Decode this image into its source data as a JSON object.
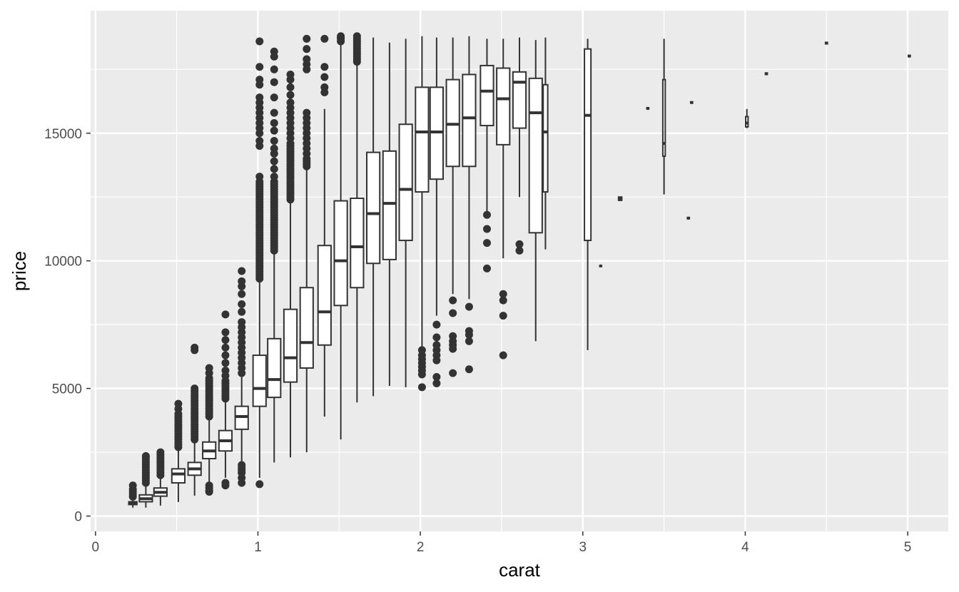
{
  "chart_data": {
    "type": "boxplot",
    "title": "",
    "xlabel": "carat",
    "ylabel": "price",
    "xlim": [
      -0.03,
      5.25
    ],
    "ylim": [
      -600,
      19800
    ],
    "x_ticks": [
      0,
      1,
      2,
      3,
      4,
      5
    ],
    "x_tick_labels": [
      "0",
      "1",
      "2",
      "3",
      "4",
      "5"
    ],
    "y_ticks": [
      0,
      5000,
      10000,
      15000
    ],
    "y_tick_labels": [
      "0",
      "5000",
      "10000",
      "15000"
    ],
    "grid": true,
    "colors": {
      "panel": "#ebebeb",
      "grid": "#ffffff",
      "box_fill": "#ffffff",
      "box_stroke": "#333333",
      "outlier": "#333333",
      "tick_text": "#4d4d4d",
      "title_text": "#000000"
    },
    "boxes": [
      {
        "x": 0.23,
        "w": 0.05,
        "q1": 450,
        "median": 500,
        "q3": 560,
        "lower": 330,
        "upper": 720,
        "outliers": [
          760,
          850,
          950,
          1050,
          1200
        ]
      },
      {
        "x": 0.31,
        "w": 0.08,
        "q1": 560,
        "median": 680,
        "q3": 830,
        "lower": 330,
        "upper": 1200,
        "outliers": [
          1300,
          1400,
          1500,
          1600,
          1700,
          1800,
          1900,
          2000,
          2100,
          2200,
          2300,
          2350
        ]
      },
      {
        "x": 0.4,
        "w": 0.08,
        "q1": 780,
        "median": 930,
        "q3": 1100,
        "lower": 410,
        "upper": 1500,
        "outliers": [
          1600,
          1700,
          1800,
          1900,
          2000,
          2100,
          2200,
          2300,
          2400,
          2500
        ]
      },
      {
        "x": 0.51,
        "w": 0.08,
        "q1": 1300,
        "median": 1650,
        "q3": 1850,
        "lower": 550,
        "upper": 2600,
        "outliers": [
          2700,
          2800,
          2900,
          3000,
          3100,
          3200,
          3300,
          3400,
          3500,
          3600,
          3700,
          3800,
          3900,
          4000,
          4200,
          4400
        ]
      },
      {
        "x": 0.61,
        "w": 0.08,
        "q1": 1600,
        "median": 1850,
        "q3": 2100,
        "lower": 800,
        "upper": 2900,
        "outliers": [
          3000,
          3100,
          3200,
          3300,
          3400,
          3500,
          3600,
          3700,
          3800,
          3900,
          4000,
          4100,
          4200,
          4300,
          4400,
          4500,
          4600,
          4700,
          4800,
          4900,
          5000,
          6500,
          6600
        ]
      },
      {
        "x": 0.7,
        "w": 0.08,
        "q1": 2250,
        "median": 2550,
        "q3": 2900,
        "lower": 1300,
        "upper": 3800,
        "outliers": [
          950,
          1000,
          1100,
          1200,
          3900,
          4000,
          4100,
          4200,
          4300,
          4400,
          4500,
          4600,
          4700,
          4800,
          4900,
          5000,
          5100,
          5200,
          5300,
          5400,
          5600,
          5800
        ]
      },
      {
        "x": 0.8,
        "w": 0.08,
        "q1": 2550,
        "median": 2950,
        "q3": 3350,
        "lower": 1500,
        "upper": 4500,
        "outliers": [
          1200,
          1300,
          4600,
          4700,
          4800,
          4900,
          5000,
          5100,
          5200,
          5300,
          5500,
          5700,
          6000,
          6300,
          6600,
          6900,
          7200,
          7900
        ]
      },
      {
        "x": 0.9,
        "w": 0.08,
        "q1": 3400,
        "median": 3900,
        "q3": 4300,
        "lower": 2100,
        "upper": 5500,
        "outliers": [
          1300,
          1500,
          1700,
          1800,
          1900,
          2000,
          5600,
          5800,
          6000,
          6200,
          6400,
          6600,
          6800,
          7000,
          7200,
          7400,
          7600,
          8000,
          8300,
          8700,
          9000,
          9200,
          9600
        ]
      },
      {
        "x": 1.01,
        "w": 0.08,
        "q1": 4300,
        "median": 5000,
        "q3": 6300,
        "lower": 1500,
        "upper": 9200,
        "outliers": [
          1250,
          9300,
          9400,
          9500,
          9600,
          9700,
          9800,
          9900,
          10000,
          10100,
          10200,
          10300,
          10400,
          10500,
          10600,
          10700,
          10800,
          10900,
          11000,
          11100,
          11200,
          11300,
          11400,
          11500,
          11600,
          11700,
          11800,
          11900,
          12000,
          12100,
          12200,
          12300,
          12400,
          12500,
          12600,
          12700,
          12800,
          12900,
          13000,
          13100,
          13300,
          14500,
          14700,
          15000,
          15200,
          15400,
          15600,
          15800,
          16000,
          16200,
          16400,
          16900,
          17100,
          17600,
          18600
        ]
      },
      {
        "x": 1.1,
        "w": 0.08,
        "q1": 4650,
        "median": 5350,
        "q3": 6950,
        "lower": 2100,
        "upper": 10300,
        "outliers": [
          10400,
          10500,
          10600,
          10700,
          10800,
          10900,
          11000,
          11100,
          11200,
          11300,
          11400,
          11500,
          11600,
          11700,
          11800,
          11900,
          12000,
          12100,
          12200,
          12300,
          12400,
          12500,
          12600,
          12700,
          12800,
          12900,
          13000,
          13100,
          13300,
          13600,
          13900,
          14200,
          14400,
          14700,
          15100,
          15400,
          15800,
          16400,
          17000,
          17500,
          18000,
          18200
        ]
      },
      {
        "x": 1.2,
        "w": 0.08,
        "q1": 5250,
        "median": 6200,
        "q3": 8100,
        "lower": 2300,
        "upper": 12300,
        "outliers": [
          12400,
          12500,
          12600,
          12700,
          12800,
          12900,
          13000,
          13100,
          13200,
          13300,
          13400,
          13500,
          13600,
          13700,
          13800,
          13900,
          14000,
          14100,
          14200,
          14300,
          14400,
          14500,
          14600,
          14800,
          15000,
          15200,
          15400,
          15600,
          15800,
          16000,
          16200,
          16500,
          16800,
          17100,
          17300
        ]
      },
      {
        "x": 1.3,
        "w": 0.08,
        "q1": 5800,
        "median": 6800,
        "q3": 8950,
        "lower": 2500,
        "upper": 13600,
        "outliers": [
          13700,
          13800,
          13900,
          14000,
          14200,
          14400,
          14600,
          14800,
          15000,
          15200,
          15400,
          15600,
          15800,
          17500,
          17700,
          17900,
          18300,
          18700
        ]
      },
      {
        "x": 1.41,
        "w": 0.08,
        "q1": 6700,
        "median": 8000,
        "q3": 10600,
        "lower": 3900,
        "upper": 15950,
        "outliers": [
          16600,
          16800,
          17200,
          17600,
          18700
        ]
      },
      {
        "x": 1.51,
        "w": 0.08,
        "q1": 8250,
        "median": 10000,
        "q3": 12350,
        "lower": 3000,
        "upper": 18550,
        "outliers": [
          18600,
          18700,
          18750,
          18800
        ]
      },
      {
        "x": 1.61,
        "w": 0.08,
        "q1": 8950,
        "median": 10550,
        "q3": 12450,
        "lower": 4450,
        "upper": 17700,
        "outliers": [
          17800,
          17900,
          18000,
          18100,
          18200,
          18300,
          18400,
          18500,
          18600,
          18700,
          18800
        ]
      },
      {
        "x": 1.71,
        "w": 0.08,
        "q1": 9900,
        "median": 11850,
        "q3": 14250,
        "lower": 4700,
        "upper": 18750,
        "outliers": []
      },
      {
        "x": 1.81,
        "w": 0.08,
        "q1": 10050,
        "median": 12250,
        "q3": 14300,
        "lower": 5100,
        "upper": 18550,
        "outliers": []
      },
      {
        "x": 1.91,
        "w": 0.08,
        "q1": 10800,
        "median": 12800,
        "q3": 15350,
        "lower": 5050,
        "upper": 18700,
        "outliers": []
      },
      {
        "x": 2.01,
        "w": 0.08,
        "q1": 12700,
        "median": 15050,
        "q3": 16800,
        "lower": 6650,
        "upper": 18800,
        "outliers": [
          5050,
          5550,
          5700,
          5850,
          6000,
          6150,
          6300,
          6500
        ]
      },
      {
        "x": 2.1,
        "w": 0.08,
        "q1": 13200,
        "median": 15050,
        "q3": 16800,
        "lower": 7850,
        "upper": 18750,
        "outliers": [
          5200,
          5450,
          6100,
          6300,
          6500,
          6700,
          7000,
          7500
        ]
      },
      {
        "x": 2.2,
        "w": 0.08,
        "q1": 13700,
        "median": 15350,
        "q3": 17100,
        "lower": 8700,
        "upper": 18750,
        "outliers": [
          5600,
          6550,
          6700,
          6850,
          7050,
          7950,
          8450
        ]
      },
      {
        "x": 2.3,
        "w": 0.08,
        "q1": 13700,
        "median": 15600,
        "q3": 17300,
        "lower": 8500,
        "upper": 18800,
        "outliers": [
          5750,
          6850,
          7100,
          7250,
          8200
        ]
      },
      {
        "x": 2.41,
        "w": 0.08,
        "q1": 15300,
        "median": 16650,
        "q3": 17650,
        "lower": 11900,
        "upper": 18700,
        "outliers": [
          9700,
          10700,
          11250,
          11800
        ]
      },
      {
        "x": 2.51,
        "w": 0.08,
        "q1": 14550,
        "median": 16350,
        "q3": 17550,
        "lower": 10100,
        "upper": 18700,
        "outliers": [
          6300,
          7850,
          8450,
          8700
        ]
      },
      {
        "x": 2.61,
        "w": 0.08,
        "q1": 15200,
        "median": 17000,
        "q3": 17400,
        "lower": 12500,
        "upper": 18750,
        "outliers": [
          10400,
          10650
        ]
      },
      {
        "x": 2.71,
        "w": 0.08,
        "q1": 11100,
        "median": 15800,
        "q3": 17150,
        "lower": 6850,
        "upper": 18650,
        "outliers": []
      },
      {
        "x": 2.77,
        "w": 0.028,
        "q1": 12700,
        "median": 15050,
        "q3": 16900,
        "lower": 10450,
        "upper": 18750,
        "outliers": []
      },
      {
        "x": 3.03,
        "w": 0.04,
        "q1": 10800,
        "median": 15700,
        "q3": 18300,
        "lower": 6500,
        "upper": 18700,
        "outliers": []
      },
      {
        "x": 3.11,
        "w": 0.012,
        "q1": 9790,
        "median": 9800,
        "q3": 9810,
        "lower": 9780,
        "upper": 9820,
        "outliers": []
      },
      {
        "x": 3.23,
        "w": 0.02,
        "q1": 12370,
        "median": 12440,
        "q3": 12500,
        "lower": 12340,
        "upper": 12520,
        "outliers": []
      },
      {
        "x": 3.4,
        "w": 0.012,
        "q1": 15950,
        "median": 15970,
        "q3": 16000,
        "lower": 15930,
        "upper": 16010,
        "outliers": []
      },
      {
        "x": 3.5,
        "w": 0.015,
        "q1": 14100,
        "median": 14600,
        "q3": 17100,
        "lower": 12600,
        "upper": 18700,
        "outliers": []
      },
      {
        "x": 3.65,
        "w": 0.012,
        "q1": 11650,
        "median": 11670,
        "q3": 11700,
        "lower": 11630,
        "upper": 11710,
        "outliers": []
      },
      {
        "x": 3.67,
        "w": 0.012,
        "q1": 16180,
        "median": 16200,
        "q3": 16230,
        "lower": 16160,
        "upper": 16240,
        "outliers": []
      },
      {
        "x": 4.01,
        "w": 0.015,
        "q1": 15250,
        "median": 15400,
        "q3": 15650,
        "lower": 15200,
        "upper": 15950,
        "outliers": []
      },
      {
        "x": 4.13,
        "w": 0.012,
        "q1": 17300,
        "median": 17330,
        "q3": 17360,
        "lower": 17280,
        "upper": 17380,
        "outliers": []
      },
      {
        "x": 4.5,
        "w": 0.012,
        "q1": 18500,
        "median": 18530,
        "q3": 18560,
        "lower": 18480,
        "upper": 18580,
        "outliers": []
      },
      {
        "x": 5.01,
        "w": 0.012,
        "q1": 18000,
        "median": 18020,
        "q3": 18050,
        "lower": 17980,
        "upper": 18070,
        "outliers": []
      }
    ]
  }
}
